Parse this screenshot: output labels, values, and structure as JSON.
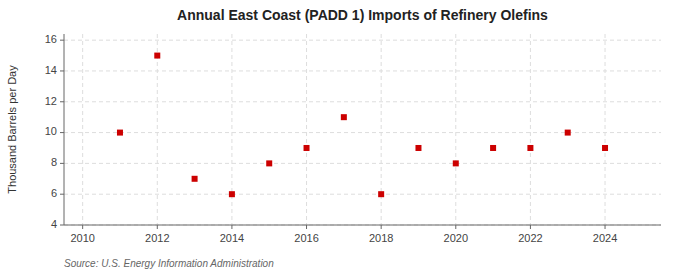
{
  "chart_data": {
    "type": "scatter",
    "title": "Annual East Coast (PADD 1) Imports of Refinery Olefins",
    "ylabel": "Thousand Barrels per Day",
    "source": "Source: U.S. Energy Information Administration",
    "x": [
      2011,
      2012,
      2013,
      2014,
      2015,
      2016,
      2017,
      2018,
      2019,
      2020,
      2021,
      2022,
      2023,
      2024
    ],
    "values": [
      10,
      15,
      7,
      6,
      8,
      9,
      11,
      6,
      9,
      8,
      9,
      9,
      10,
      9
    ],
    "color": "#cc0000",
    "marker": "square",
    "xlim": [
      2009.5,
      2025.5
    ],
    "ylim": [
      4,
      16.4
    ],
    "xticks": [
      2010,
      2012,
      2014,
      2016,
      2018,
      2020,
      2022,
      2024
    ],
    "yticks": [
      4,
      6,
      8,
      10,
      12,
      14,
      16
    ],
    "grid": true
  }
}
